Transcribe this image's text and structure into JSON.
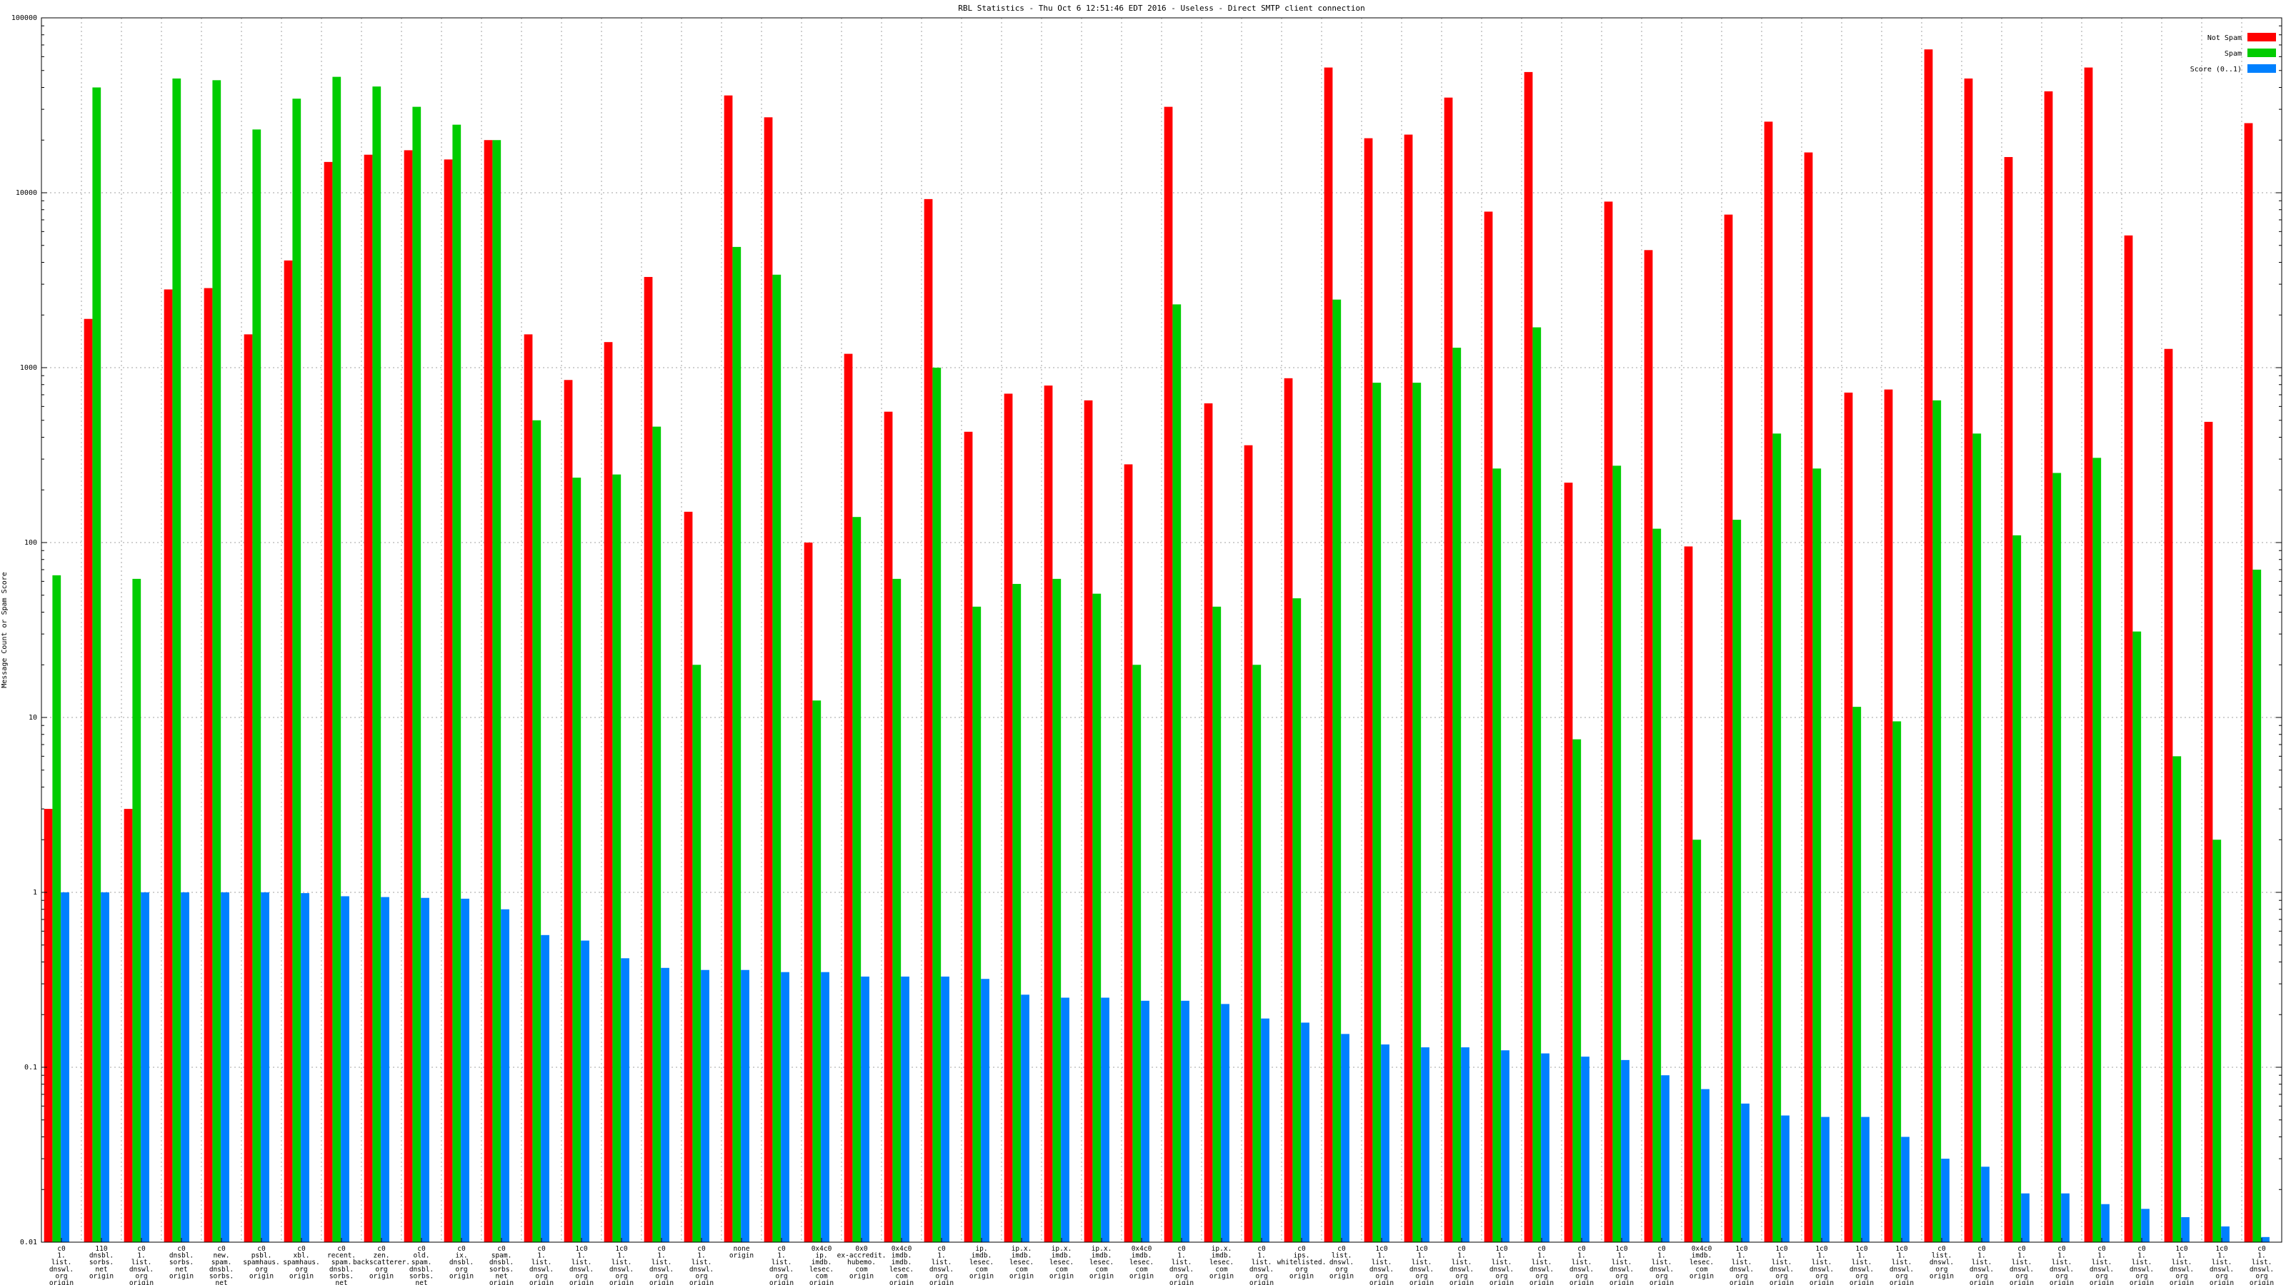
{
  "chart_data": {
    "type": "bar",
    "scale": "log",
    "title": "RBL Statistics - Thu Oct  6 12:51:46 EDT 2016 - Useless - Direct SMTP client connection",
    "xlabel": "",
    "ylabel": "Message Count or Spam Score",
    "ylim": [
      0.01,
      100000
    ],
    "ytick_labels": [
      "0.01",
      "0.1",
      "1",
      "10",
      "100",
      "1000",
      "10000",
      "100000"
    ],
    "grid": true,
    "legend_position": "top-right",
    "series": [
      {
        "name": "Not Spam",
        "color": "#ff0000",
        "values": [
          3,
          1900,
          3,
          2800,
          2850,
          1550,
          4100,
          15000,
          16500,
          17500,
          15500,
          20000,
          1550,
          850,
          1400,
          3300,
          150,
          36000,
          27000,
          100,
          1200,
          560,
          9200,
          430,
          710,
          790,
          650,
          280,
          31000,
          625,
          360,
          870,
          52000,
          20500,
          21500,
          35000,
          7800,
          49000,
          220,
          8900,
          4700,
          95,
          7500,
          25500,
          17000,
          720,
          750,
          66000,
          45000,
          16000,
          38000,
          52000,
          5700,
          1280,
          490,
          25000
        ]
      },
      {
        "name": "Spam",
        "color": "#00cc00",
        "values": [
          65,
          40000,
          62,
          45000,
          44000,
          23000,
          34500,
          46000,
          40500,
          31000,
          24500,
          20000,
          500,
          235,
          245,
          460,
          20,
          4900,
          3400,
          12.5,
          140,
          62,
          1000,
          43,
          58,
          62,
          51,
          20,
          2300,
          43,
          20,
          48,
          2450,
          820,
          820,
          1300,
          265,
          1700,
          7.5,
          275,
          120,
          2,
          135,
          420,
          265,
          11.5,
          9.5,
          650,
          420,
          110,
          250,
          305,
          31,
          6,
          2,
          70
        ]
      },
      {
        "name": "Score (0..1)",
        "color": "#0080ff",
        "values": [
          1,
          1,
          1,
          1,
          1,
          1,
          0.99,
          0.95,
          0.94,
          0.93,
          0.92,
          0.8,
          0.57,
          0.53,
          0.42,
          0.37,
          0.36,
          0.36,
          0.35,
          0.35,
          0.33,
          0.33,
          0.33,
          0.32,
          0.26,
          0.25,
          0.25,
          0.24,
          0.24,
          0.23,
          0.19,
          0.18,
          0.155,
          0.135,
          0.13,
          0.13,
          0.125,
          0.12,
          0.115,
          0.11,
          0.09,
          0.075,
          0.062,
          0.053,
          0.052,
          0.052,
          0.04,
          0.03,
          0.027,
          0.019,
          0.019,
          0.0165,
          0.0155,
          0.0139,
          0.0123,
          0.0107
        ]
      }
    ],
    "categories": [
      [
        "c0",
        "1.",
        "list.",
        "dnswl.",
        "org",
        "origin"
      ],
      [
        "110",
        "dnsbl.",
        "sorbs.",
        "net",
        "origin"
      ],
      [
        "c0",
        "1.",
        "list.",
        "dnswl.",
        "org",
        "origin"
      ],
      [
        "c0",
        "dnsbl.",
        "sorbs.",
        "net",
        "origin"
      ],
      [
        "c0",
        "new.",
        "spam.",
        "dnsbl.",
        "sorbs.",
        "net",
        "origin"
      ],
      [
        "c0",
        "psbl.",
        "spamhaus.",
        "org",
        "origin"
      ],
      [
        "c0",
        "xbl.",
        "spamhaus.",
        "org",
        "origin"
      ],
      [
        "c0",
        "recent.",
        "spam.",
        "dnsbl.",
        "sorbs.",
        "net",
        "origin"
      ],
      [
        "c0",
        "zen.",
        "backscatterer.",
        "org",
        "origin"
      ],
      [
        "c0",
        "old.",
        "spam.",
        "dnsbl.",
        "sorbs.",
        "net",
        "origin"
      ],
      [
        "c0",
        "ix.",
        "dnsbl.",
        "org",
        "origin"
      ],
      [
        "c0",
        "spam.",
        "dnsbl.",
        "sorbs.",
        "net",
        "origin"
      ],
      [
        "c0",
        "1.",
        "list.",
        "dnswl.",
        "org",
        "origin"
      ],
      [
        "1c0",
        "1.",
        "list.",
        "dnswl.",
        "org",
        "origin"
      ],
      [
        "1c0",
        "1.",
        "list.",
        "dnswl.",
        "org",
        "origin"
      ],
      [
        "c0",
        "1.",
        "list.",
        "dnswl.",
        "org",
        "origin"
      ],
      [
        "c0",
        "1.",
        "list.",
        "dnswl.",
        "org",
        "origin"
      ],
      [
        "none",
        "origin"
      ],
      [
        "c0",
        "1.",
        "list.",
        "dnswl.",
        "org",
        "origin"
      ],
      [
        "0x4c0",
        "ip.",
        "imdb.",
        "lesec.",
        "com",
        "origin"
      ],
      [
        "0x0",
        "ex-accredit.",
        "hubemo.",
        "com",
        "origin"
      ],
      [
        "0x4c0",
        "imdb.",
        "imdb.",
        "lesec.",
        "com",
        "origin"
      ],
      [
        "c0",
        "1.",
        "list.",
        "dnswl.",
        "org",
        "origin"
      ],
      [
        "ip.",
        "imdb.",
        "lesec.",
        "com",
        "origin"
      ],
      [
        "ip.x.",
        "imdb.",
        "lesec.",
        "com",
        "origin"
      ],
      [
        "ip.x.",
        "imdb.",
        "lesec.",
        "com",
        "origin"
      ],
      [
        "ip.x.",
        "imdb.",
        "lesec.",
        "com",
        "origin"
      ],
      [
        "0x4c0",
        "imdb.",
        "lesec.",
        "com",
        "origin"
      ],
      [
        "c0",
        "1.",
        "list.",
        "dnswl.",
        "org",
        "origin"
      ],
      [
        "ip.x.",
        "imdb.",
        "lesec.",
        "com",
        "origin"
      ],
      [
        "c0",
        "1.",
        "list.",
        "dnswl.",
        "org",
        "origin"
      ],
      [
        "c0",
        "ips.",
        "whitelisted.",
        "org",
        "origin"
      ],
      [
        "c0",
        "list.",
        "dnswl.",
        "org",
        "origin"
      ],
      [
        "1c0",
        "1.",
        "list.",
        "dnswl.",
        "org",
        "origin"
      ],
      [
        "1c0",
        "1.",
        "list.",
        "dnswl.",
        "org",
        "origin"
      ],
      [
        "c0",
        "1.",
        "list.",
        "dnswl.",
        "org",
        "origin"
      ],
      [
        "1c0",
        "1.",
        "list.",
        "dnswl.",
        "org",
        "origin"
      ],
      [
        "c0",
        "1.",
        "list.",
        "dnswl.",
        "org",
        "origin"
      ],
      [
        "c0",
        "1.",
        "list.",
        "dnswl.",
        "org",
        "origin"
      ],
      [
        "1c0",
        "1.",
        "list.",
        "dnswl.",
        "org",
        "origin"
      ],
      [
        "c0",
        "1.",
        "list.",
        "dnswl.",
        "org",
        "origin"
      ],
      [
        "0x4c0",
        "imdb.",
        "lesec.",
        "com",
        "origin"
      ],
      [
        "1c0",
        "1.",
        "list.",
        "dnswl.",
        "org",
        "origin"
      ],
      [
        "1c0",
        "1.",
        "list.",
        "dnswl.",
        "org",
        "origin"
      ],
      [
        "1c0",
        "1.",
        "list.",
        "dnswl.",
        "org",
        "origin"
      ],
      [
        "1c0",
        "1.",
        "list.",
        "dnswl.",
        "org",
        "origin"
      ],
      [
        "1c0",
        "1.",
        "list.",
        "dnswl.",
        "org",
        "origin"
      ],
      [
        "c0",
        "list.",
        "dnswl.",
        "org",
        "origin"
      ],
      [
        "c0",
        "1.",
        "list.",
        "dnswl.",
        "org",
        "origin"
      ],
      [
        "c0",
        "1.",
        "list.",
        "dnswl.",
        "org",
        "origin"
      ],
      [
        "c0",
        "1.",
        "list.",
        "dnswl.",
        "org",
        "origin"
      ],
      [
        "c0",
        "1.",
        "list.",
        "dnswl.",
        "org",
        "origin"
      ],
      [
        "c0",
        "1.",
        "list.",
        "dnswl.",
        "org",
        "origin"
      ],
      [
        "1c0",
        "1.",
        "list.",
        "dnswl.",
        "org",
        "origin"
      ],
      [
        "1c0",
        "1.",
        "list.",
        "dnswl.",
        "org",
        "origin"
      ],
      [
        "c0",
        "1.",
        "list.",
        "dnswl.",
        "org",
        "origin"
      ]
    ]
  }
}
